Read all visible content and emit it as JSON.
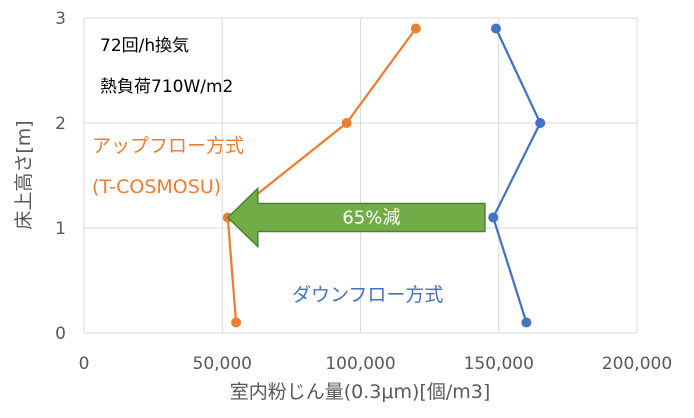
{
  "chart_data": {
    "type": "line",
    "xlabel": "室内粉じん量(0.3μm)[個/m3]",
    "ylabel": "床上高さ[m]",
    "xlim": [
      0,
      200000
    ],
    "ylim": [
      0,
      3
    ],
    "x_ticks": [
      0,
      50000,
      100000,
      150000,
      200000
    ],
    "x_tick_labels": [
      "0",
      "50,000",
      "100,000",
      "150,000",
      "200,000"
    ],
    "y_ticks": [
      0,
      1,
      2,
      3
    ],
    "y_tick_labels": [
      "0",
      "1",
      "2",
      "3"
    ],
    "grid": true,
    "series": [
      {
        "name": "アップフロー方式",
        "name_sub": "(T-COSMOSU)",
        "color": "#ED7D31",
        "points": [
          {
            "x": 55000,
            "y": 0.1
          },
          {
            "x": 52000,
            "y": 1.1
          },
          {
            "x": 95000,
            "y": 2.0
          },
          {
            "x": 120000,
            "y": 2.9
          }
        ]
      },
      {
        "name": "ダウンフロー方式",
        "color": "#4472C4",
        "points": [
          {
            "x": 160000,
            "y": 0.1
          },
          {
            "x": 148000,
            "y": 1.1
          },
          {
            "x": 165000,
            "y": 2.0
          },
          {
            "x": 149000,
            "y": 2.9
          }
        ]
      }
    ],
    "annotations": {
      "note_line1": "72回/h換気",
      "note_line2": "熱負荷710W/m2",
      "arrow_label": "65%減",
      "arrow_color": "#70AD47",
      "arrow_border": "#507E32",
      "arrow_from_x": 145000,
      "arrow_to_x": 52000,
      "arrow_y": 1.1
    }
  }
}
